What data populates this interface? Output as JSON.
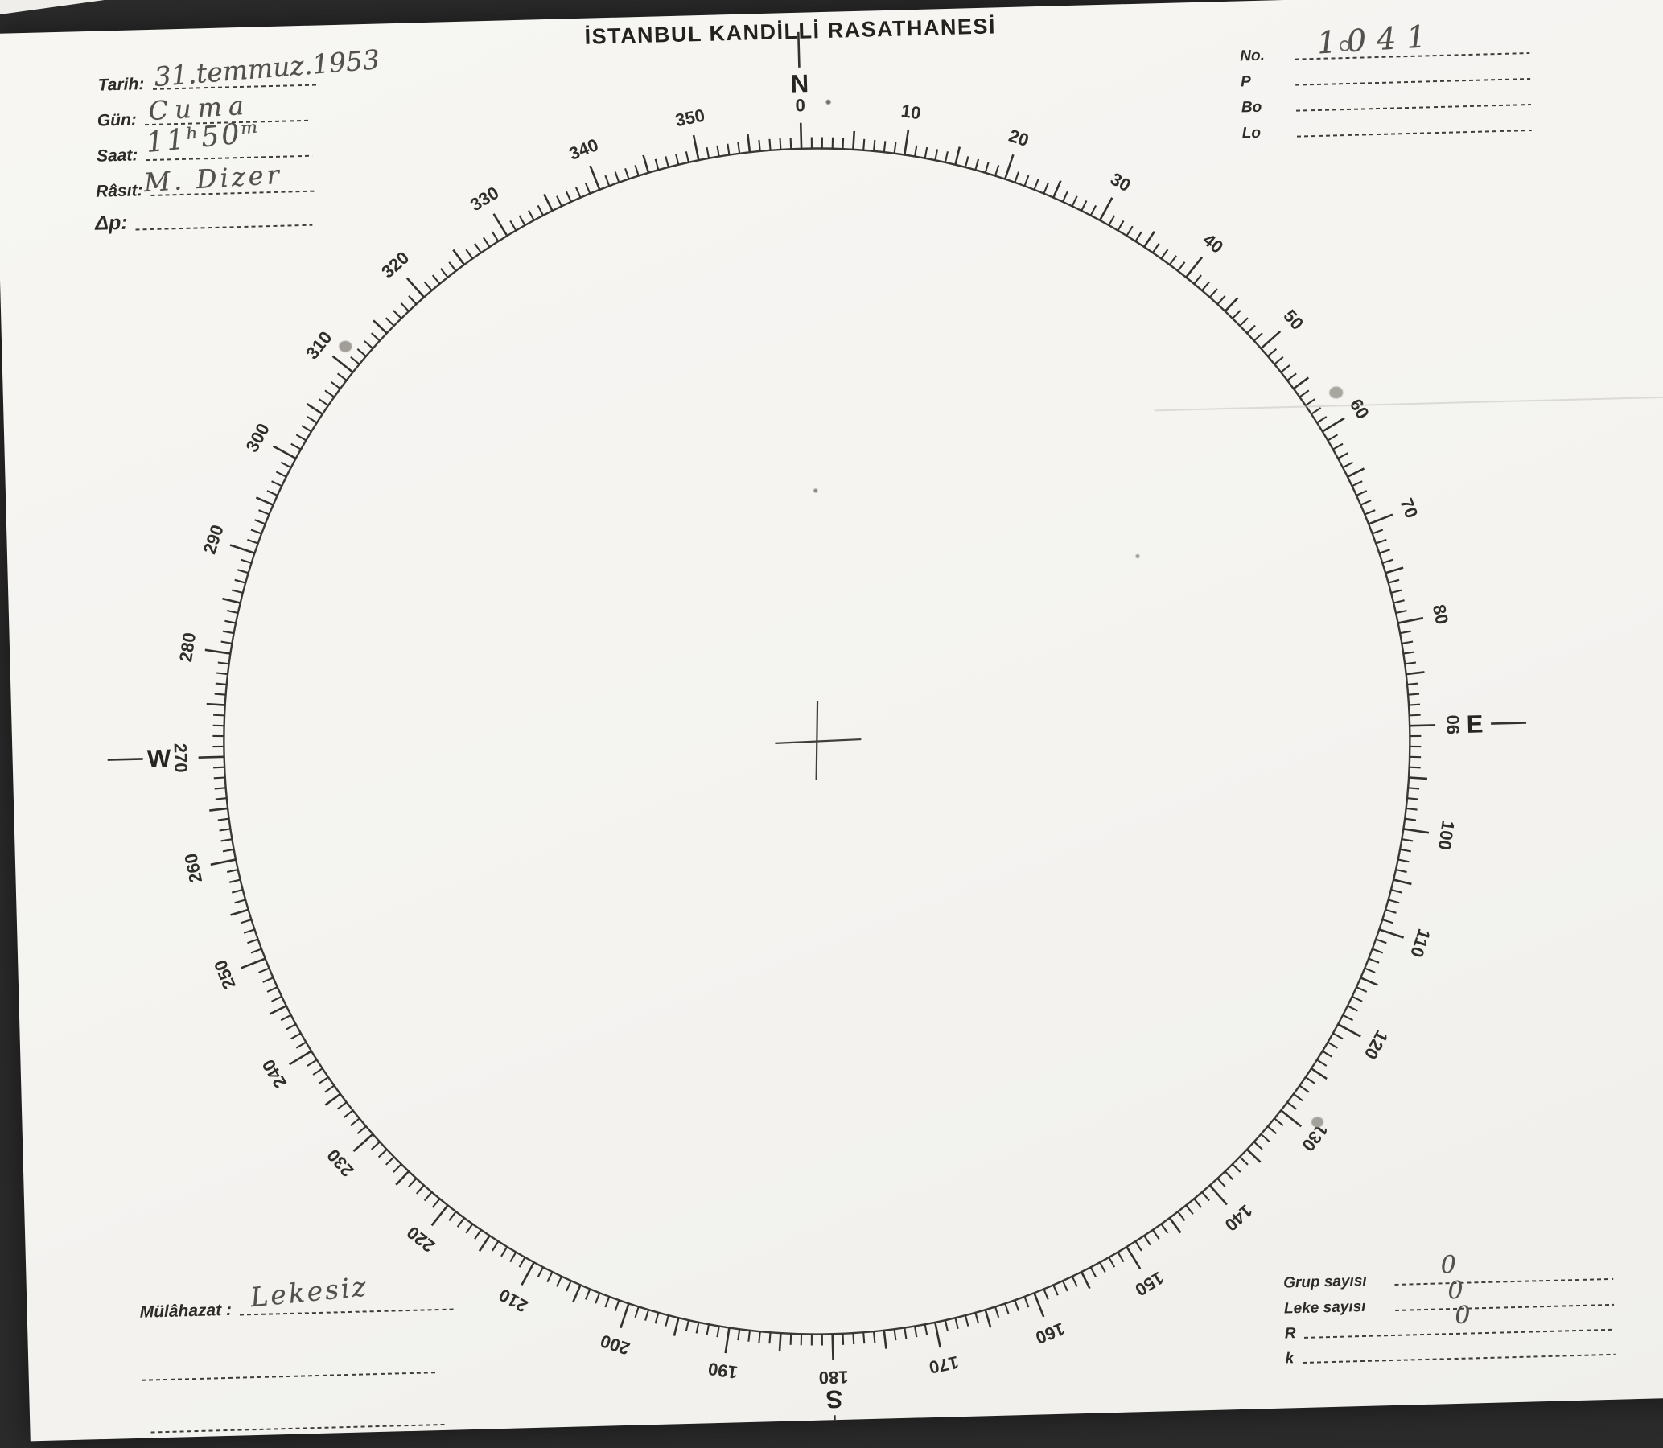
{
  "title": "İSTANBUL KANDİLLİ RASATHANESİ",
  "header_left": {
    "fields": [
      {
        "label": "Tarih:",
        "value": "31.temmuz.1953"
      },
      {
        "label": "Gün:",
        "value": "Cuma"
      },
      {
        "label": "Saat:",
        "value": "11ʰ50ᵐ"
      },
      {
        "label": "Râsıt:",
        "value": "M. Dizer"
      },
      {
        "label": "Δp:",
        "value": ""
      }
    ]
  },
  "header_right": {
    "fields": [
      {
        "label": "No.",
        "value": "1041"
      },
      {
        "label": "P",
        "value": ""
      },
      {
        "label": "Bo",
        "value": ""
      },
      {
        "label": "Lo",
        "value": ""
      }
    ]
  },
  "footer_left": {
    "label": "Mülâhazat :",
    "value": "Lekesiz"
  },
  "footer_right": {
    "fields": [
      {
        "label": "Grup sayısı",
        "value": "0"
      },
      {
        "label": "Leke sayısı",
        "value": "0"
      },
      {
        "label": "R",
        "value": "0"
      },
      {
        "label": "k",
        "value": ""
      }
    ]
  },
  "dial": {
    "degree_labels": [
      "0",
      "10",
      "20",
      "30",
      "40",
      "50",
      "60",
      "70",
      "80",
      "90",
      "100",
      "110",
      "120",
      "130",
      "140",
      "150",
      "160",
      "170",
      "180",
      "190",
      "200",
      "210",
      "220",
      "230",
      "240",
      "250",
      "260",
      "270",
      "280",
      "290",
      "300",
      "310",
      "320",
      "330",
      "340",
      "350"
    ],
    "cardinals": [
      {
        "letter": "N",
        "angle": 0
      },
      {
        "letter": "E",
        "angle": 90
      },
      {
        "letter": "S",
        "angle": 180
      },
      {
        "letter": "W",
        "angle": 270
      }
    ],
    "minor_tick_step_deg": 1,
    "medium_tick_step_deg": 5,
    "labeled_step_deg": 10
  }
}
